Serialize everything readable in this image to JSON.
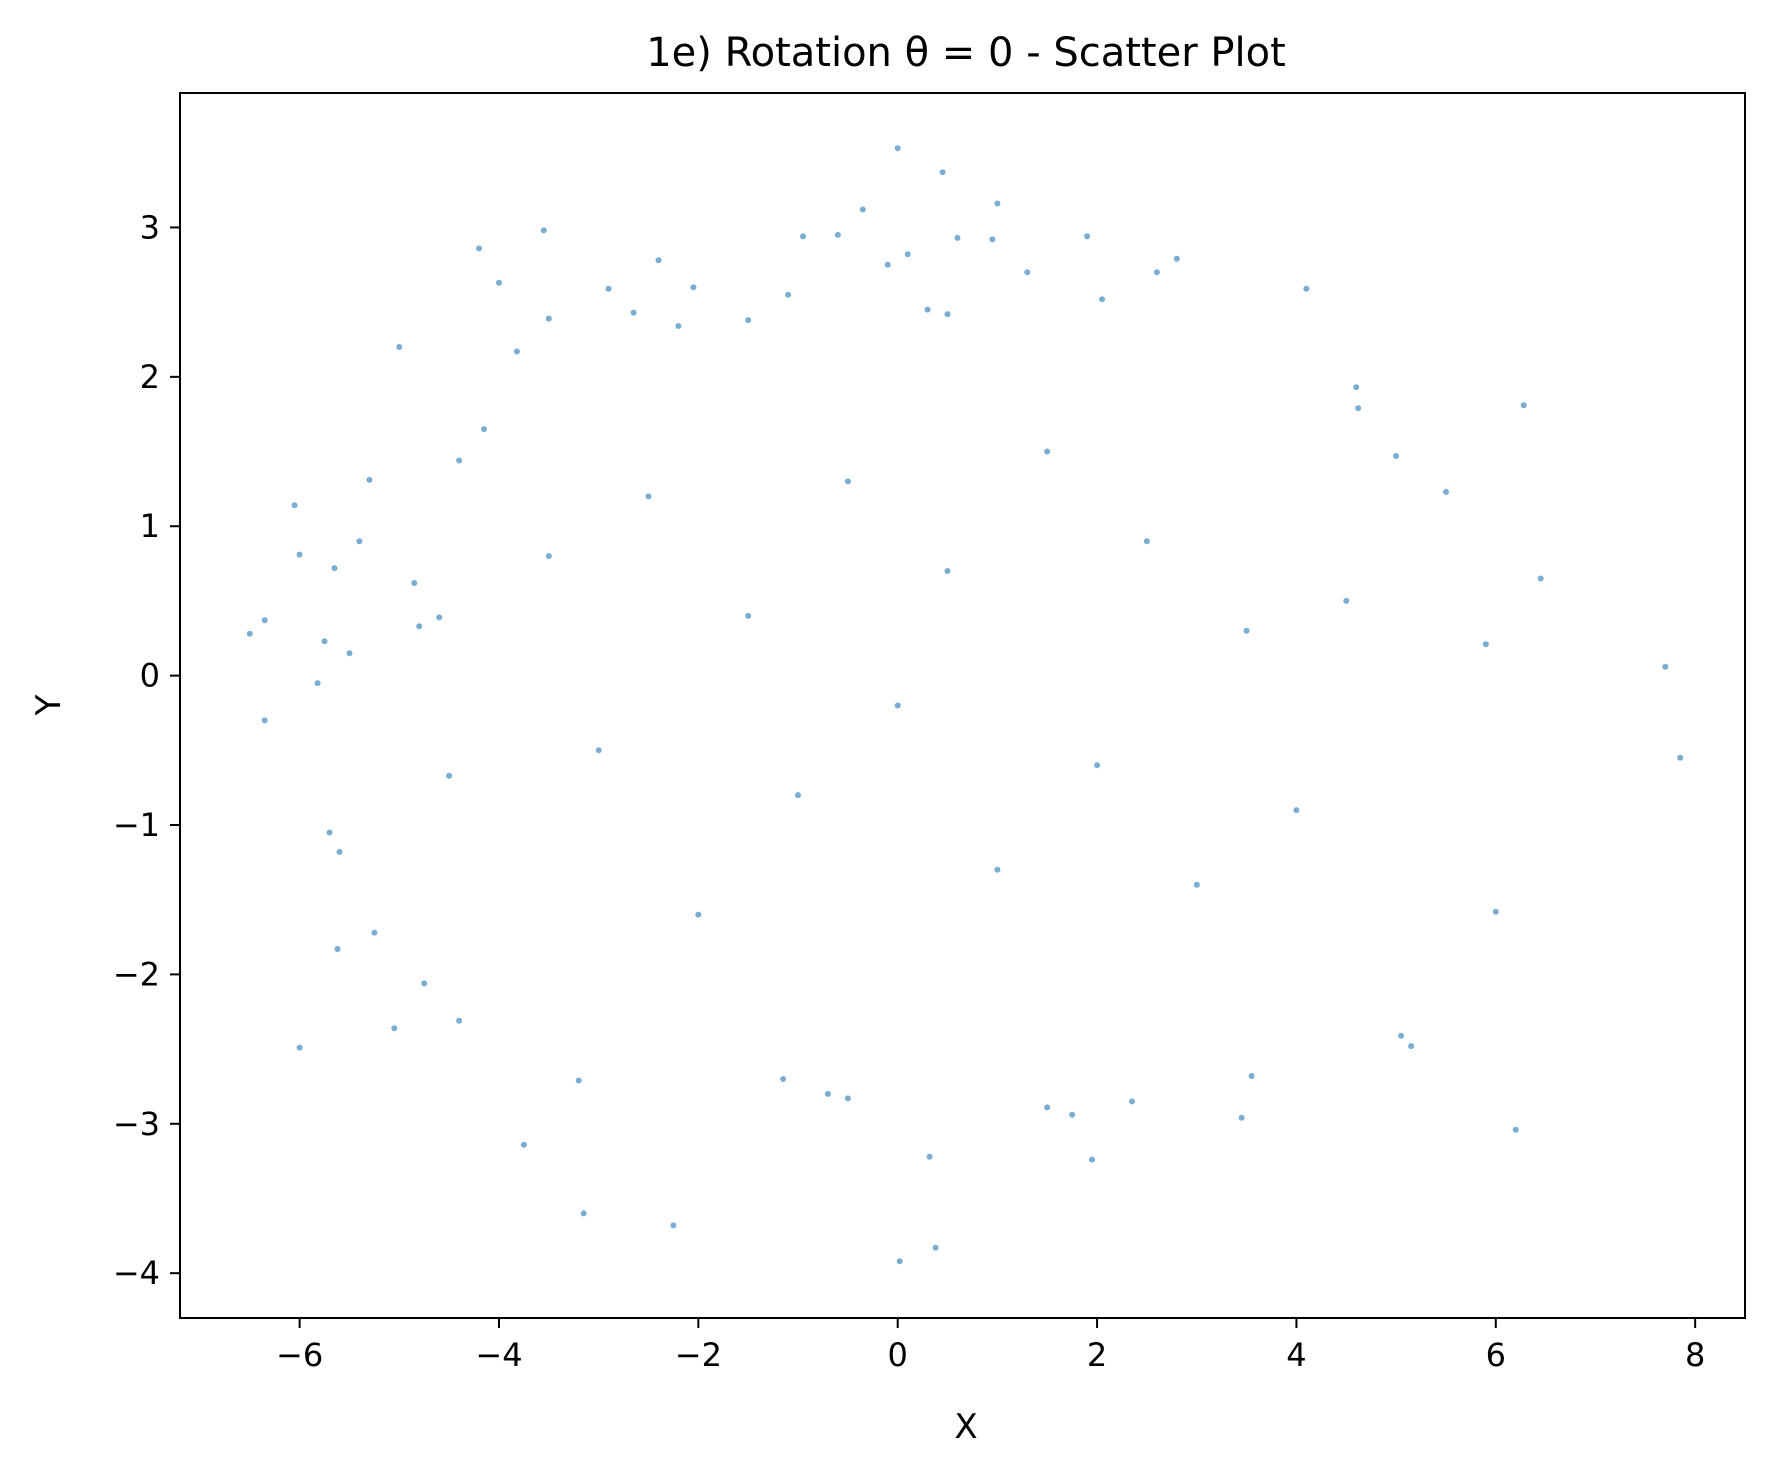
{
  "chart_data": {
    "type": "scatter",
    "title": "1e) Rotation θ = 0 - Scatter Plot",
    "xlabel": "X",
    "ylabel": "Y",
    "xlim": [
      -7.2,
      8.5
    ],
    "ylim": [
      -4.3,
      3.9
    ],
    "xticks": [
      -6,
      -4,
      -2,
      0,
      2,
      4,
      6,
      8
    ],
    "xtick_labels": [
      "−6",
      "−4",
      "−2",
      "0",
      "2",
      "4",
      "6",
      "8"
    ],
    "yticks": [
      -4,
      -3,
      -2,
      -1,
      0,
      1,
      2,
      3
    ],
    "ytick_labels": [
      "−4",
      "−3",
      "−2",
      "−1",
      "0",
      "1",
      "2",
      "3"
    ],
    "grid": false,
    "legend": "none",
    "marker_color": "#1f77b4",
    "marker_alpha": 0.6,
    "distribution_note": "Dense elliptical point cloud centered at (0, 0); x spread about 2 (std), y spread about 1 (std).",
    "series": [
      {
        "points": [
          [
            -6.5,
            0.28
          ],
          [
            -6.35,
            0.37
          ],
          [
            -6.35,
            -0.3
          ],
          [
            -6.05,
            1.14
          ],
          [
            -6.0,
            0.81
          ],
          [
            -6.0,
            -2.49
          ],
          [
            -5.82,
            -0.05
          ],
          [
            -5.75,
            0.23
          ],
          [
            -5.7,
            -1.05
          ],
          [
            -5.65,
            0.72
          ],
          [
            -5.62,
            -1.83
          ],
          [
            -5.6,
            -1.18
          ],
          [
            -5.5,
            0.15
          ],
          [
            -5.4,
            0.9
          ],
          [
            -5.3,
            1.31
          ],
          [
            -5.25,
            -1.72
          ],
          [
            -5.05,
            -2.36
          ],
          [
            -5.0,
            2.2
          ],
          [
            -4.85,
            0.62
          ],
          [
            -4.8,
            0.33
          ],
          [
            -4.75,
            -2.06
          ],
          [
            -4.6,
            0.39
          ],
          [
            -4.5,
            -0.67
          ],
          [
            -4.4,
            -2.31
          ],
          [
            -4.4,
            1.44
          ],
          [
            -4.2,
            2.86
          ],
          [
            -4.15,
            1.65
          ],
          [
            -4.0,
            2.63
          ],
          [
            -3.82,
            2.17
          ],
          [
            -3.75,
            -3.14
          ],
          [
            -3.55,
            2.98
          ],
          [
            -3.5,
            2.39
          ],
          [
            -3.2,
            -2.71
          ],
          [
            -3.15,
            -3.6
          ],
          [
            -2.9,
            2.59
          ],
          [
            -2.65,
            2.43
          ],
          [
            -2.4,
            2.78
          ],
          [
            -2.25,
            -3.68
          ],
          [
            -2.2,
            2.34
          ],
          [
            -2.05,
            2.6
          ],
          [
            -1.5,
            2.38
          ],
          [
            -1.15,
            -2.7
          ],
          [
            -1.1,
            2.55
          ],
          [
            -0.95,
            2.94
          ],
          [
            -0.7,
            -2.8
          ],
          [
            -0.6,
            2.95
          ],
          [
            -0.5,
            -2.83
          ],
          [
            -0.35,
            3.12
          ],
          [
            -0.1,
            2.75
          ],
          [
            0.0,
            3.53
          ],
          [
            0.02,
            -3.92
          ],
          [
            0.1,
            2.82
          ],
          [
            0.3,
            2.45
          ],
          [
            0.32,
            -3.22
          ],
          [
            0.38,
            -3.83
          ],
          [
            0.45,
            3.37
          ],
          [
            0.5,
            2.42
          ],
          [
            0.6,
            2.93
          ],
          [
            0.95,
            2.92
          ],
          [
            1.0,
            3.16
          ],
          [
            1.3,
            2.7
          ],
          [
            1.5,
            -2.89
          ],
          [
            1.75,
            -2.94
          ],
          [
            1.9,
            2.94
          ],
          [
            1.95,
            -3.24
          ],
          [
            2.05,
            2.52
          ],
          [
            2.35,
            -2.85
          ],
          [
            2.6,
            2.7
          ],
          [
            2.8,
            2.79
          ],
          [
            3.45,
            -2.96
          ],
          [
            3.55,
            -2.68
          ],
          [
            4.1,
            2.59
          ],
          [
            4.6,
            1.93
          ],
          [
            4.62,
            1.79
          ],
          [
            5.0,
            1.47
          ],
          [
            5.05,
            -2.41
          ],
          [
            5.15,
            -2.48
          ],
          [
            5.5,
            1.23
          ],
          [
            5.9,
            0.21
          ],
          [
            6.0,
            -1.58
          ],
          [
            6.2,
            -3.04
          ],
          [
            6.28,
            1.81
          ],
          [
            6.45,
            0.65
          ],
          [
            7.7,
            0.06
          ],
          [
            7.85,
            -0.55
          ],
          [
            -2.5,
            1.2
          ],
          [
            -2.0,
            -1.6
          ],
          [
            -1.5,
            0.4
          ],
          [
            -1.0,
            -0.8
          ],
          [
            -0.5,
            1.3
          ],
          [
            0.0,
            -0.2
          ],
          [
            0.5,
            0.7
          ],
          [
            1.0,
            -1.3
          ],
          [
            1.5,
            1.5
          ],
          [
            2.0,
            -0.6
          ],
          [
            2.5,
            0.9
          ],
          [
            3.0,
            -1.4
          ],
          [
            3.5,
            0.3
          ],
          [
            -3.0,
            -0.5
          ],
          [
            -3.5,
            0.8
          ],
          [
            4.0,
            -0.9
          ],
          [
            4.5,
            0.5
          ]
        ]
      }
    ]
  }
}
